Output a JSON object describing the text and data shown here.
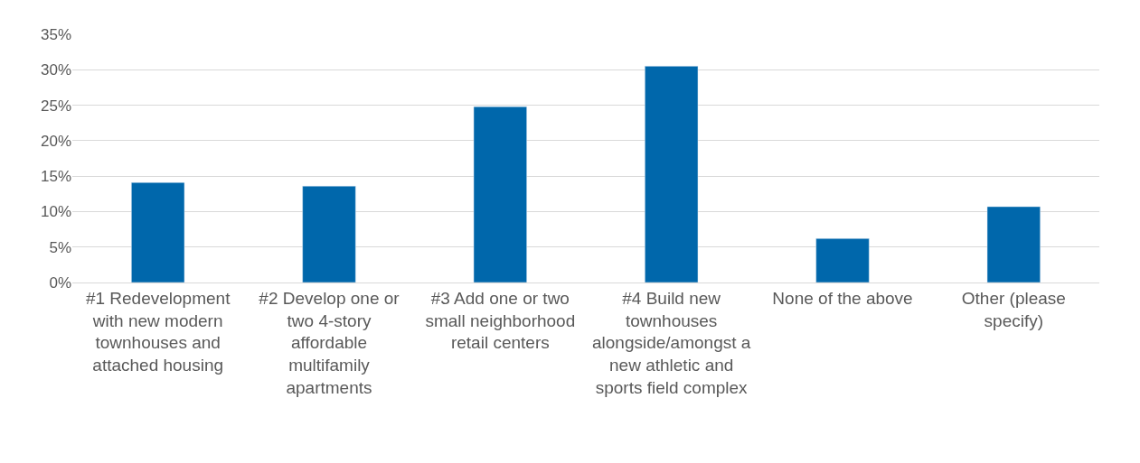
{
  "chart_data": {
    "type": "bar",
    "categories": [
      "#1 Redevelopment with new modern townhouses and attached housing",
      "#2 Develop one or two 4-story affordable multifamily apartments",
      "#3 Add one or two small neighborhood retail centers",
      "#4 Build new townhouses alongside/amongst a new athletic and sports field complex",
      "None of the above",
      "Other (please specify)"
    ],
    "values": [
      14.1,
      13.6,
      24.8,
      30.5,
      6.2,
      10.7
    ],
    "color": "#0067ab",
    "ylim": [
      0,
      35
    ],
    "yticks": [
      {
        "value": 0,
        "label": "0%"
      },
      {
        "value": 5,
        "label": "5%"
      },
      {
        "value": 10,
        "label": "10%"
      },
      {
        "value": 15,
        "label": "15%"
      },
      {
        "value": 20,
        "label": "20%"
      },
      {
        "value": 25,
        "label": "25%"
      },
      {
        "value": 30,
        "label": "30%"
      },
      {
        "value": 35,
        "label": "35%"
      }
    ],
    "grid": "y",
    "legend": false
  }
}
